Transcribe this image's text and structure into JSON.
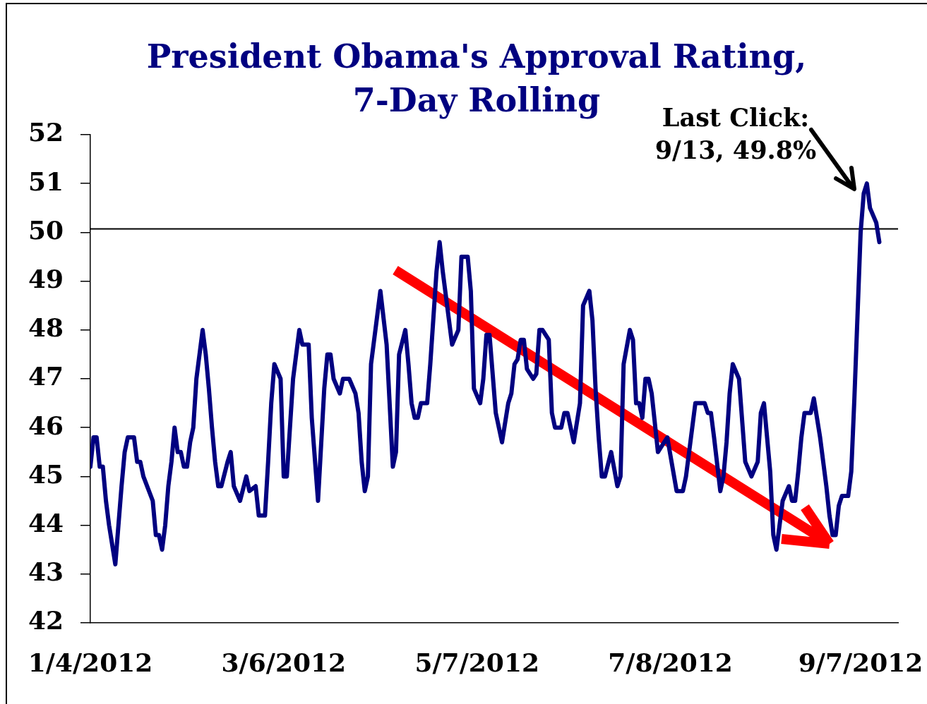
{
  "chart_data": {
    "type": "line",
    "title": "President Obama's Approval Rating, 7-Day Rolling",
    "annotations": [
      "Last Click: 9/13, 49.8%"
    ],
    "x": [
      "2012-01-04",
      "2012-01-05",
      "2012-01-06",
      "2012-01-07",
      "2012-01-08",
      "2012-01-09",
      "2012-01-10",
      "2012-01-12",
      "2012-01-13",
      "2012-01-14",
      "2012-01-15",
      "2012-01-16",
      "2012-01-18",
      "2012-01-19",
      "2012-01-20",
      "2012-01-21",
      "2012-01-24",
      "2012-01-25",
      "2012-01-26",
      "2012-01-27",
      "2012-01-28",
      "2012-01-29",
      "2012-01-30",
      "2012-01-31",
      "2012-02-01",
      "2012-02-02",
      "2012-02-03",
      "2012-02-04",
      "2012-02-05",
      "2012-02-06",
      "2012-02-07",
      "2012-02-09",
      "2012-02-10",
      "2012-02-11",
      "2012-02-12",
      "2012-02-13",
      "2012-02-14",
      "2012-02-15",
      "2012-02-17",
      "2012-02-18",
      "2012-02-19",
      "2012-02-21",
      "2012-02-23",
      "2012-02-24",
      "2012-02-26",
      "2012-02-27",
      "2012-02-29",
      "2012-03-01",
      "2012-03-02",
      "2012-03-03",
      "2012-03-05",
      "2012-03-06",
      "2012-03-07",
      "2012-03-09",
      "2012-03-11",
      "2012-03-12",
      "2012-03-14",
      "2012-03-15",
      "2012-03-17",
      "2012-03-19",
      "2012-03-20",
      "2012-03-21",
      "2012-03-22",
      "2012-03-24",
      "2012-03-25",
      "2012-03-27",
      "2012-03-29",
      "2012-03-30",
      "2012-03-31",
      "2012-04-01",
      "2012-04-02",
      "2012-04-03",
      "2012-04-06",
      "2012-04-08",
      "2012-04-10",
      "2012-04-11",
      "2012-04-12",
      "2012-04-14",
      "2012-04-15",
      "2012-04-16",
      "2012-04-17",
      "2012-04-18",
      "2012-04-19",
      "2012-04-21",
      "2012-04-22",
      "2012-04-24",
      "2012-04-25",
      "2012-04-26",
      "2012-04-27",
      "2012-04-29",
      "2012-05-01",
      "2012-05-02",
      "2012-05-04",
      "2012-05-05",
      "2012-05-06",
      "2012-05-08",
      "2012-05-09",
      "2012-05-10",
      "2012-05-11",
      "2012-05-13",
      "2012-05-15",
      "2012-05-17",
      "2012-05-18",
      "2012-05-19",
      "2012-05-20",
      "2012-05-21",
      "2012-05-22",
      "2012-05-23",
      "2012-05-25",
      "2012-05-26",
      "2012-05-27",
      "2012-05-28",
      "2012-05-30",
      "2012-05-31",
      "2012-06-01",
      "2012-06-03",
      "2012-06-04",
      "2012-06-05",
      "2012-06-07",
      "2012-06-09",
      "2012-06-10",
      "2012-06-12",
      "2012-06-13",
      "2012-06-14",
      "2012-06-15",
      "2012-06-16",
      "2012-06-17",
      "2012-06-19",
      "2012-06-21",
      "2012-06-22",
      "2012-06-23",
      "2012-06-25",
      "2012-06-26",
      "2012-06-27",
      "2012-06-28",
      "2012-06-29",
      "2012-06-30",
      "2012-07-01",
      "2012-07-02",
      "2012-07-04",
      "2012-07-05",
      "2012-07-07",
      "2012-07-10",
      "2012-07-12",
      "2012-07-13",
      "2012-07-16",
      "2012-07-19",
      "2012-07-20",
      "2012-07-21",
      "2012-07-22",
      "2012-07-24",
      "2012-07-25",
      "2012-07-26",
      "2012-07-27",
      "2012-07-28",
      "2012-07-30",
      "2012-08-01",
      "2012-08-03",
      "2012-08-05",
      "2012-08-06",
      "2012-08-07",
      "2012-08-09",
      "2012-08-10",
      "2012-08-11",
      "2012-08-12",
      "2012-08-13",
      "2012-08-15",
      "2012-08-16",
      "2012-08-17",
      "2012-08-18",
      "2012-08-19",
      "2012-08-20",
      "2012-08-22",
      "2012-08-23",
      "2012-08-25",
      "2012-08-27",
      "2012-08-28",
      "2012-08-29",
      "2012-08-30",
      "2012-08-31",
      "2012-09-01",
      "2012-09-03",
      "2012-09-04",
      "2012-09-05",
      "2012-09-06",
      "2012-09-07",
      "2012-09-08",
      "2012-09-09",
      "2012-09-10",
      "2012-09-12",
      "2012-09-13"
    ],
    "series": [
      {
        "color": "#000080",
        "values": [
          45.2,
          45.8,
          45.8,
          45.2,
          45.2,
          44.5,
          44.0,
          43.2,
          44.0,
          44.8,
          45.5,
          45.8,
          45.8,
          45.3,
          45.3,
          45.0,
          44.5,
          43.8,
          43.8,
          43.5,
          44.0,
          44.8,
          45.3,
          46.0,
          45.5,
          45.5,
          45.2,
          45.2,
          45.7,
          46.0,
          47.0,
          48.0,
          47.5,
          46.8,
          46.0,
          45.3,
          44.8,
          44.8,
          45.3,
          45.5,
          44.8,
          44.5,
          45.0,
          44.7,
          44.8,
          44.2,
          44.2,
          45.3,
          46.5,
          47.3,
          47.0,
          45.0,
          45.0,
          47.0,
          48.0,
          47.7,
          47.7,
          46.2,
          44.5,
          46.8,
          47.5,
          47.5,
          47.0,
          46.7,
          47.0,
          47.0,
          46.7,
          46.3,
          45.3,
          44.7,
          45.0,
          47.3,
          48.8,
          47.7,
          45.2,
          45.5,
          47.5,
          48.0,
          47.3,
          46.5,
          46.2,
          46.2,
          46.5,
          46.5,
          47.3,
          49.2,
          49.8,
          49.2,
          48.7,
          47.7,
          48.0,
          49.5,
          49.5,
          48.8,
          46.8,
          46.5,
          47.0,
          47.9,
          47.9,
          46.3,
          45.7,
          46.5,
          46.7,
          47.3,
          47.4,
          47.8,
          47.8,
          47.2,
          47.0,
          47.1,
          48.0,
          48.0,
          47.8,
          46.3,
          46.0,
          46.0,
          46.3,
          46.3,
          45.7,
          46.5,
          48.5,
          48.8,
          48.2,
          46.8,
          45.8,
          45.0,
          45.0,
          45.5,
          44.8,
          45.0,
          47.3,
          48.0,
          47.8,
          46.5,
          46.5,
          46.2,
          47.0,
          47.0,
          46.7,
          45.5,
          45.6,
          45.8,
          44.7,
          44.7,
          45.0,
          46.5,
          46.5,
          46.3,
          46.3,
          45.8,
          44.7,
          45.0,
          45.7,
          46.7,
          47.3,
          47.0,
          45.3,
          45.0,
          45.3,
          46.3,
          46.5,
          45.1,
          43.8,
          43.5,
          44.0,
          44.5,
          44.8,
          44.5,
          44.5,
          45.1,
          45.8,
          46.3,
          46.3,
          46.6,
          45.8,
          44.8,
          44.2,
          43.8,
          43.8,
          44.4,
          44.6,
          44.6,
          45.1,
          46.6,
          48.3,
          50.0,
          50.8,
          51.0,
          50.5,
          50.2,
          49.8
        ]
      }
    ],
    "xlim": [
      "2012-01-04",
      "2012-09-19"
    ],
    "xticks": [
      {
        "value": "2012-01-04",
        "label": "1/4/2012"
      },
      {
        "value": "2012-03-06",
        "label": "3/6/2012"
      },
      {
        "value": "2012-05-07",
        "label": "5/7/2012"
      },
      {
        "value": "2012-07-08",
        "label": "7/8/2012"
      },
      {
        "value": "2012-09-07",
        "label": "9/7/2012"
      }
    ],
    "ylim": [
      42,
      52
    ],
    "yticks": [
      42,
      43,
      44,
      45,
      46,
      47,
      48,
      49,
      50,
      51,
      52
    ],
    "ref_lines": [
      {
        "axis": "y",
        "value": 50.07,
        "color": "#000000"
      }
    ]
  }
}
